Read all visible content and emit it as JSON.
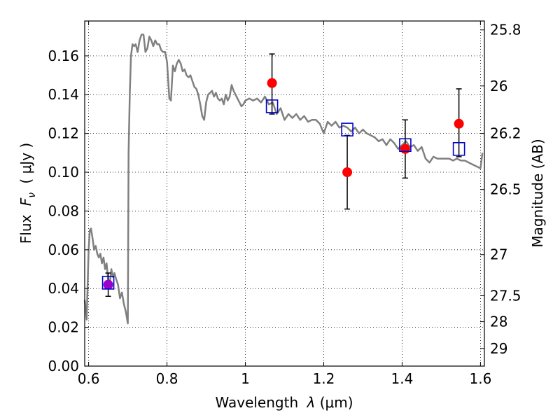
{
  "chart_data": {
    "type": "scatter",
    "xlabel_prefix": "Wavelength",
    "xlabel_symbol": "λ",
    "xlabel_unit": "(μm)",
    "ylabel_prefix": "Flux",
    "ylabel_symbol": "F",
    "ylabel_subscript": "ν",
    "ylabel_unit": "( μJy )",
    "y2label": "Magnitude (AB)",
    "xlim": [
      0.59,
      1.61
    ],
    "ylim": [
      0.0,
      0.178
    ],
    "grid": true,
    "x_ticks": [
      0.6,
      0.8,
      1.0,
      1.2,
      1.4,
      1.6
    ],
    "x_tick_labels": [
      "0.6",
      "0.8",
      "1",
      "1.2",
      "1.4",
      "1.6"
    ],
    "y_ticks": [
      0.0,
      0.02,
      0.04,
      0.06,
      0.08,
      0.1,
      0.12,
      0.14,
      0.16
    ],
    "y_tick_labels": [
      "0.00",
      "0.02",
      "0.04",
      "0.06",
      "0.08",
      "0.10",
      "0.12",
      "0.14",
      "0.16"
    ],
    "y2_ticks": [
      {
        "label": "25.8",
        "flux": 0.1734
      },
      {
        "label": "26",
        "flux": 0.1445
      },
      {
        "label": "26.2",
        "flux": 0.12
      },
      {
        "label": "26.5",
        "flux": 0.0911
      },
      {
        "label": "27",
        "flux": 0.0575
      },
      {
        "label": "27.5",
        "flux": 0.0363
      },
      {
        "label": "28",
        "flux": 0.0229
      },
      {
        "label": "29",
        "flux": 0.0091
      }
    ],
    "series": [
      {
        "kind": "line",
        "color": "#808080",
        "x": [
          0.59,
          0.595,
          0.6,
          0.603,
          0.606,
          0.61,
          0.614,
          0.618,
          0.622,
          0.626,
          0.63,
          0.634,
          0.638,
          0.642,
          0.646,
          0.65,
          0.654,
          0.658,
          0.662,
          0.666,
          0.67,
          0.675,
          0.68,
          0.685,
          0.69,
          0.695,
          0.7,
          0.702,
          0.705,
          0.708,
          0.712,
          0.716,
          0.72,
          0.725,
          0.73,
          0.735,
          0.74,
          0.745,
          0.75,
          0.755,
          0.76,
          0.765,
          0.77,
          0.775,
          0.78,
          0.785,
          0.79,
          0.795,
          0.8,
          0.803,
          0.806,
          0.81,
          0.815,
          0.82,
          0.825,
          0.83,
          0.835,
          0.84,
          0.845,
          0.85,
          0.855,
          0.86,
          0.865,
          0.87,
          0.875,
          0.88,
          0.885,
          0.89,
          0.895,
          0.9,
          0.905,
          0.91,
          0.915,
          0.92,
          0.925,
          0.93,
          0.935,
          0.94,
          0.945,
          0.95,
          0.955,
          0.96,
          0.965,
          0.97,
          0.975,
          0.98,
          0.985,
          0.99,
          0.995,
          1.0,
          1.01,
          1.02,
          1.03,
          1.04,
          1.05,
          1.06,
          1.07,
          1.08,
          1.09,
          1.1,
          1.11,
          1.12,
          1.13,
          1.14,
          1.15,
          1.16,
          1.17,
          1.18,
          1.19,
          1.2,
          1.21,
          1.22,
          1.23,
          1.24,
          1.25,
          1.26,
          1.27,
          1.28,
          1.29,
          1.3,
          1.31,
          1.32,
          1.33,
          1.34,
          1.35,
          1.36,
          1.37,
          1.38,
          1.39,
          1.4,
          1.41,
          1.42,
          1.43,
          1.44,
          1.45,
          1.46,
          1.47,
          1.48,
          1.49,
          1.5,
          1.51,
          1.52,
          1.53,
          1.54,
          1.55,
          1.56,
          1.57,
          1.58,
          1.59,
          1.6,
          1.605
        ],
        "y": [
          0.034,
          0.024,
          0.06,
          0.07,
          0.071,
          0.066,
          0.06,
          0.062,
          0.058,
          0.056,
          0.058,
          0.053,
          0.056,
          0.05,
          0.053,
          0.044,
          0.042,
          0.05,
          0.046,
          0.048,
          0.045,
          0.042,
          0.035,
          0.038,
          0.032,
          0.028,
          0.022,
          0.11,
          0.14,
          0.16,
          0.166,
          0.165,
          0.166,
          0.162,
          0.168,
          0.171,
          0.171,
          0.162,
          0.164,
          0.17,
          0.168,
          0.165,
          0.168,
          0.166,
          0.166,
          0.163,
          0.162,
          0.162,
          0.157,
          0.148,
          0.138,
          0.137,
          0.155,
          0.152,
          0.156,
          0.158,
          0.156,
          0.152,
          0.153,
          0.15,
          0.149,
          0.15,
          0.147,
          0.144,
          0.143,
          0.14,
          0.135,
          0.129,
          0.127,
          0.136,
          0.14,
          0.141,
          0.142,
          0.139,
          0.141,
          0.138,
          0.137,
          0.138,
          0.135,
          0.14,
          0.137,
          0.139,
          0.145,
          0.142,
          0.14,
          0.138,
          0.136,
          0.134,
          0.135,
          0.137,
          0.138,
          0.137,
          0.138,
          0.136,
          0.139,
          0.135,
          0.136,
          0.13,
          0.133,
          0.127,
          0.13,
          0.128,
          0.13,
          0.127,
          0.129,
          0.126,
          0.127,
          0.127,
          0.125,
          0.12,
          0.126,
          0.124,
          0.126,
          0.123,
          0.124,
          0.123,
          0.121,
          0.123,
          0.12,
          0.122,
          0.12,
          0.119,
          0.118,
          0.116,
          0.117,
          0.114,
          0.117,
          0.115,
          0.112,
          0.114,
          0.116,
          0.113,
          0.114,
          0.111,
          0.113,
          0.107,
          0.105,
          0.108,
          0.107,
          0.107,
          0.107,
          0.107,
          0.106,
          0.107,
          0.106,
          0.106,
          0.105,
          0.104,
          0.103,
          0.102,
          0.11
        ]
      },
      {
        "kind": "points",
        "marker": "square",
        "color": "#0000cc",
        "x": [
          0.65,
          1.068,
          1.26,
          1.408,
          1.545
        ],
        "y": [
          0.043,
          0.134,
          0.122,
          0.114,
          0.112
        ]
      },
      {
        "kind": "errorbar_points",
        "marker": "circle",
        "color": "#ff0000",
        "x": [
          0.65,
          1.068,
          1.26,
          1.408,
          1.545
        ],
        "y": [
          0.042,
          0.146,
          0.1,
          0.112,
          0.125
        ],
        "yerr_low": [
          0.036,
          0.13,
          0.081,
          0.097,
          0.108
        ],
        "yerr_high": [
          0.048,
          0.161,
          0.119,
          0.127,
          0.143
        ],
        "first_marker_color": "#9900cc"
      }
    ]
  }
}
